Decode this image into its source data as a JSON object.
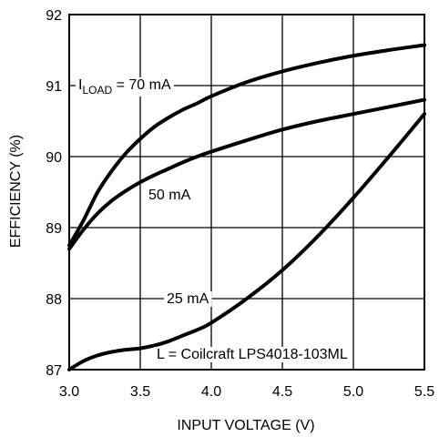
{
  "chart_data": {
    "type": "line",
    "xlabel": "INPUT VOLTAGE (V)",
    "ylabel": "EFFICIENCY (%)",
    "xlim": [
      3.0,
      5.5
    ],
    "ylim": [
      87,
      92
    ],
    "grid": true,
    "xticks": [
      "3.0",
      "3.5",
      "4.0",
      "4.5",
      "5.0",
      "5.5"
    ],
    "yticks": [
      "87",
      "88",
      "89",
      "90",
      "91",
      "92"
    ],
    "series": [
      {
        "name": "70 mA",
        "x": [
          3.0,
          3.1,
          3.2,
          3.3,
          3.4,
          3.5,
          3.6,
          3.7,
          3.8,
          3.9,
          4.0,
          4.25,
          4.5,
          4.75,
          5.0,
          5.25,
          5.5
        ],
        "y": [
          88.75,
          89.1,
          89.5,
          89.8,
          90.05,
          90.25,
          90.42,
          90.55,
          90.66,
          90.75,
          90.85,
          91.05,
          91.2,
          91.32,
          91.42,
          91.5,
          91.57
        ]
      },
      {
        "name": "50 mA",
        "x": [
          3.0,
          3.1,
          3.2,
          3.3,
          3.4,
          3.5,
          3.6,
          3.7,
          3.8,
          3.9,
          4.0,
          4.25,
          4.5,
          4.75,
          5.0,
          5.25,
          5.5
        ],
        "y": [
          88.7,
          88.97,
          89.2,
          89.38,
          89.52,
          89.64,
          89.74,
          89.83,
          89.92,
          90.0,
          90.07,
          90.23,
          90.38,
          90.5,
          90.6,
          90.7,
          90.8
        ]
      },
      {
        "name": "25 mA",
        "x": [
          3.0,
          3.1,
          3.2,
          3.3,
          3.4,
          3.5,
          3.6,
          3.7,
          3.8,
          3.9,
          4.0,
          4.25,
          4.5,
          4.75,
          5.0,
          5.25,
          5.5
        ],
        "y": [
          87.0,
          87.12,
          87.2,
          87.25,
          87.28,
          87.3,
          87.34,
          87.4,
          87.48,
          87.56,
          87.66,
          88.0,
          88.4,
          88.88,
          89.42,
          90.0,
          90.6
        ]
      }
    ],
    "annotations": {
      "load_main": "I",
      "load_sub": "LOAD",
      "load_value": " = 70 mA",
      "label_50": "50 mA",
      "label_25": "25 mA",
      "inductor": "L = Coilcraft LPS4018-103ML"
    }
  }
}
